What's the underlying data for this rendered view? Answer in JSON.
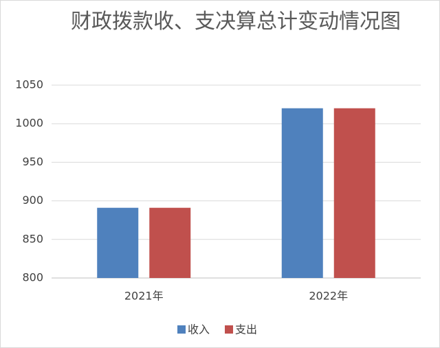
{
  "chart_data": {
    "type": "bar",
    "title": "财政拨款收、支决算总计变动情况图",
    "categories": [
      "2021年",
      "2022年"
    ],
    "series": [
      {
        "name": "收入",
        "color": "#4f81bd",
        "values": [
          891,
          1020
        ]
      },
      {
        "name": "支出",
        "color": "#c0504d",
        "values": [
          891,
          1020
        ]
      }
    ],
    "ylim": [
      800,
      1050
    ],
    "yticks": [
      800,
      850,
      900,
      950,
      1000,
      1050
    ],
    "grid": true,
    "legend": "bottom"
  }
}
